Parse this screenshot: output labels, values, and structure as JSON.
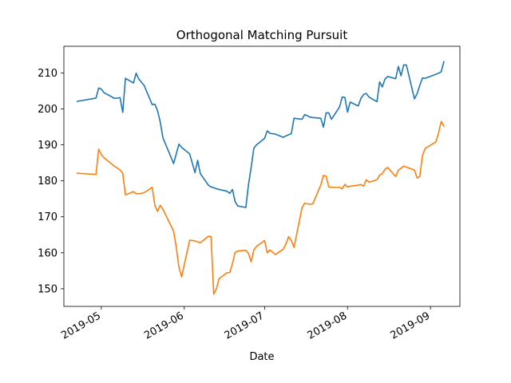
{
  "chart_data": {
    "type": "line",
    "title": "Orthogonal Matching Pursuit",
    "xlabel": "Date",
    "ylabel": "",
    "x_tick_labels": [
      "2019-05",
      "2019-06",
      "2019-07",
      "2019-08",
      "2019-09"
    ],
    "y_tick_labels": [
      "150",
      "160",
      "170",
      "180",
      "190",
      "200",
      "210"
    ],
    "y_ticks": [
      150,
      160,
      170,
      180,
      190,
      200,
      210
    ],
    "ylim": [
      145.1,
      217.4
    ],
    "xlim": [
      "2019-04-17",
      "2019-09-12"
    ],
    "grid": false,
    "legend": "none",
    "series": [
      {
        "color": "#1f77b4",
        "x": [
          "2019-04-22",
          "2019-04-29",
          "2019-04-30",
          "2019-05-01",
          "2019-05-02",
          "2019-05-06",
          "2019-05-08",
          "2019-05-09",
          "2019-05-10",
          "2019-05-13",
          "2019-05-14",
          "2019-05-15",
          "2019-05-17",
          "2019-05-20",
          "2019-05-21",
          "2019-05-22",
          "2019-05-23",
          "2019-05-24",
          "2019-05-28",
          "2019-05-29",
          "2019-05-30",
          "2019-05-31",
          "2019-06-03",
          "2019-06-05",
          "2019-06-06",
          "2019-06-07",
          "2019-06-10",
          "2019-06-11",
          "2019-06-12",
          "2019-06-13",
          "2019-06-14",
          "2019-06-17",
          "2019-06-18",
          "2019-06-19",
          "2019-06-20",
          "2019-06-21",
          "2019-06-24",
          "2019-06-25",
          "2019-06-26",
          "2019-06-27",
          "2019-06-28",
          "2019-07-01",
          "2019-07-02",
          "2019-07-03",
          "2019-07-05",
          "2019-07-08",
          "2019-07-09",
          "2019-07-10",
          "2019-07-11",
          "2019-07-12",
          "2019-07-15",
          "2019-07-16",
          "2019-07-17",
          "2019-07-18",
          "2019-07-19",
          "2019-07-22",
          "2019-07-23",
          "2019-07-24",
          "2019-07-25",
          "2019-07-26",
          "2019-07-29",
          "2019-07-30",
          "2019-07-31",
          "2019-08-01",
          "2019-08-02",
          "2019-08-05",
          "2019-08-06",
          "2019-08-07",
          "2019-08-08",
          "2019-08-09",
          "2019-08-12",
          "2019-08-13",
          "2019-08-14",
          "2019-08-15",
          "2019-08-16",
          "2019-08-19",
          "2019-08-20",
          "2019-08-21",
          "2019-08-22",
          "2019-08-23",
          "2019-08-26",
          "2019-08-27",
          "2019-08-28",
          "2019-08-29",
          "2019-08-30",
          "2019-09-03",
          "2019-09-04",
          "2019-09-05",
          "2019-09-06"
        ],
        "values": [
          202.1,
          203.0,
          205.8,
          205.5,
          204.5,
          202.9,
          203.1,
          199.0,
          208.5,
          207.2,
          209.9,
          208.3,
          206.5,
          201.2,
          201.3,
          199.5,
          196.4,
          192.0,
          184.8,
          187.5,
          190.2,
          189.3,
          187.5,
          182.3,
          185.7,
          182.0,
          178.8,
          178.3,
          178.1,
          177.8,
          177.6,
          177.1,
          176.5,
          177.6,
          174.2,
          173.0,
          172.6,
          179.0,
          183.8,
          189.1,
          190.0,
          191.8,
          193.9,
          193.2,
          193.0,
          192.1,
          192.5,
          192.8,
          193.1,
          197.4,
          197.1,
          198.4,
          198.1,
          197.7,
          197.6,
          197.4,
          194.9,
          198.9,
          198.9,
          197.1,
          200.5,
          203.3,
          203.2,
          199.1,
          201.9,
          200.8,
          202.9,
          204.0,
          204.3,
          203.3,
          202.0,
          207.5,
          206.1,
          208.3,
          209.0,
          208.4,
          211.8,
          209.2,
          212.2,
          212.2,
          202.8,
          204.2,
          206.5,
          208.6,
          208.5,
          209.6,
          209.9,
          210.3,
          213.1
        ]
      },
      {
        "color": "#ff7f0e",
        "x": [
          "2019-04-22",
          "2019-04-29",
          "2019-04-30",
          "2019-05-01",
          "2019-05-02",
          "2019-05-06",
          "2019-05-08",
          "2019-05-09",
          "2019-05-10",
          "2019-05-13",
          "2019-05-14",
          "2019-05-15",
          "2019-05-17",
          "2019-05-20",
          "2019-05-21",
          "2019-05-22",
          "2019-05-23",
          "2019-05-24",
          "2019-05-28",
          "2019-05-29",
          "2019-05-30",
          "2019-05-31",
          "2019-06-03",
          "2019-06-05",
          "2019-06-06",
          "2019-06-07",
          "2019-06-10",
          "2019-06-11",
          "2019-06-12",
          "2019-06-13",
          "2019-06-14",
          "2019-06-17",
          "2019-06-18",
          "2019-06-19",
          "2019-06-20",
          "2019-06-21",
          "2019-06-24",
          "2019-06-25",
          "2019-06-26",
          "2019-06-27",
          "2019-06-28",
          "2019-07-01",
          "2019-07-02",
          "2019-07-03",
          "2019-07-05",
          "2019-07-08",
          "2019-07-09",
          "2019-07-10",
          "2019-07-11",
          "2019-07-12",
          "2019-07-15",
          "2019-07-16",
          "2019-07-17",
          "2019-07-18",
          "2019-07-19",
          "2019-07-22",
          "2019-07-23",
          "2019-07-24",
          "2019-07-25",
          "2019-07-26",
          "2019-07-29",
          "2019-07-30",
          "2019-07-31",
          "2019-08-01",
          "2019-08-02",
          "2019-08-05",
          "2019-08-06",
          "2019-08-07",
          "2019-08-08",
          "2019-08-09",
          "2019-08-12",
          "2019-08-13",
          "2019-08-14",
          "2019-08-15",
          "2019-08-16",
          "2019-08-19",
          "2019-08-20",
          "2019-08-21",
          "2019-08-22",
          "2019-08-23",
          "2019-08-26",
          "2019-08-27",
          "2019-08-28",
          "2019-08-29",
          "2019-08-30",
          "2019-09-03",
          "2019-09-04",
          "2019-09-05",
          "2019-09-06"
        ],
        "values": [
          182.1,
          181.8,
          188.8,
          187.3,
          186.4,
          184.0,
          183.0,
          182.1,
          176.1,
          177.0,
          176.4,
          176.4,
          176.7,
          178.2,
          173.2,
          171.5,
          173.2,
          172.1,
          166.0,
          161.5,
          156.0,
          153.3,
          163.5,
          163.3,
          163.0,
          162.8,
          164.6,
          164.5,
          148.5,
          150.0,
          152.8,
          154.5,
          154.5,
          157.0,
          160.1,
          160.5,
          160.7,
          159.8,
          157.5,
          160.8,
          161.8,
          163.4,
          160.0,
          160.8,
          159.5,
          161.0,
          162.5,
          164.5,
          163.4,
          161.5,
          172.5,
          173.8,
          173.6,
          173.5,
          173.6,
          178.8,
          181.5,
          181.3,
          178.3,
          178.2,
          178.2,
          177.8,
          179.0,
          178.3,
          178.5,
          178.8,
          179.0,
          178.5,
          180.3,
          179.6,
          180.3,
          181.6,
          182.0,
          183.2,
          183.7,
          181.2,
          183.0,
          183.5,
          184.1,
          183.8,
          183.0,
          180.8,
          181.2,
          187.0,
          189.0,
          190.8,
          193.2,
          196.5,
          195.2
        ]
      }
    ]
  }
}
